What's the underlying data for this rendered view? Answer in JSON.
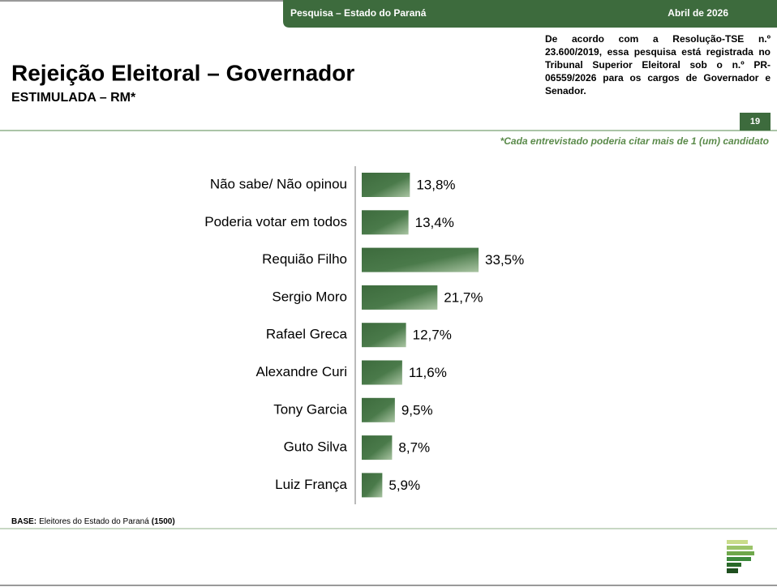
{
  "header": {
    "survey": "Pesquisa – Estado do Paraná",
    "date": "Abril de 2026"
  },
  "note": "De acordo com a Resolução-TSE n.º 23.600/2019, essa pesquisa está registrada no Tribunal Superior Eleitoral sob o n.º PR-06559/2026 para os cargos de Governador e Senador.",
  "page_number": "19",
  "footnote": "*Cada entrevistado poderia citar mais de 1 (um) candidato",
  "base": {
    "label": "BASE:",
    "text": "Eleitores do Estado do Paraná",
    "count": "(1500)"
  },
  "chart_data": {
    "type": "bar",
    "orientation": "horizontal",
    "title": "Rejeição Eleitoral – Governador",
    "subtitle": "ESTIMULADA – RM*",
    "categories": [
      "Não sabe/ Não opinou",
      "Poderia votar em todos",
      "Requião Filho",
      "Sergio Moro",
      "Rafael Greca",
      "Alexandre Curi",
      "Tony Garcia",
      "Guto Silva",
      "Luiz França"
    ],
    "values": [
      13.8,
      13.4,
      33.5,
      21.7,
      12.7,
      11.6,
      9.5,
      8.7,
      5.9
    ],
    "value_labels": [
      "13,8%",
      "13,4%",
      "33,5%",
      "21,7%",
      "12,7%",
      "11,6%",
      "9,5%",
      "8,7%",
      "5,9%"
    ],
    "color": "#3d6b3d"
  }
}
